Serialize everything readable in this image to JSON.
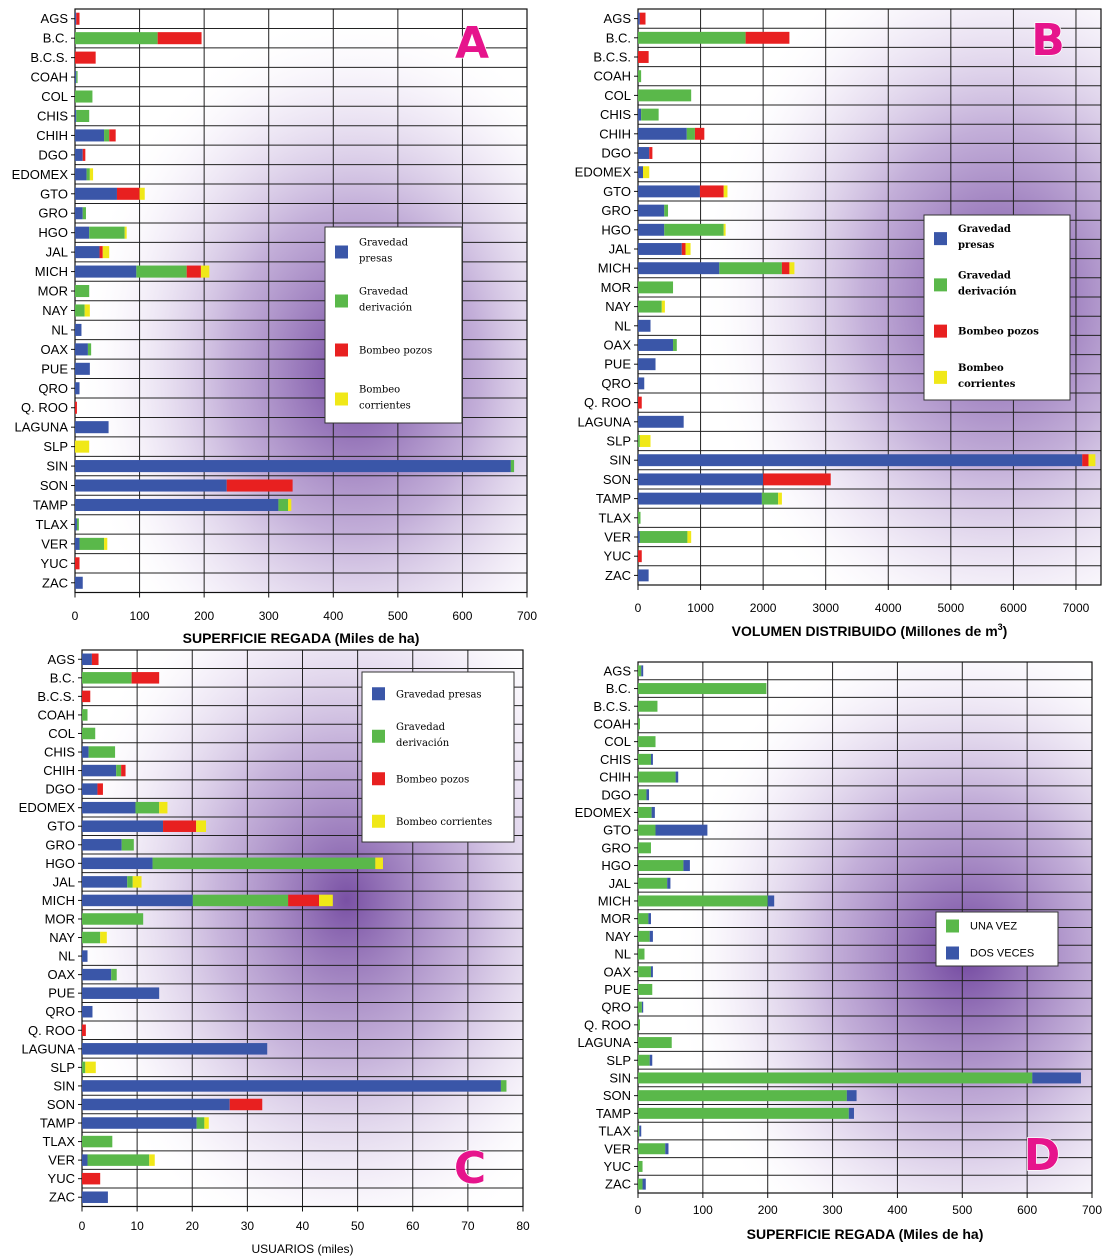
{
  "colors": {
    "gravedad_presas": "#3a56a8",
    "gravedad_derivacion": "#5ab84a",
    "bombeo_pozos": "#e82020",
    "bombeo_corrientes": "#f0e818",
    "una_vez": "#5ab84a",
    "dos_veces": "#3a56a8",
    "letter": "#e6148c",
    "background_purple": "#7a4aa8"
  },
  "chart_data": [
    {
      "id": "A",
      "type": "bar",
      "stacked": true,
      "orientation": "horizontal",
      "letter": "A",
      "xlabel": "SUPERFICIE REGADA (Miles de ha)",
      "xlim": [
        0,
        700
      ],
      "xticks": [
        0,
        100,
        200,
        300,
        400,
        500,
        600,
        700
      ],
      "grid": true,
      "legend_placement": "center-right",
      "categories": [
        "AGS",
        "B.C.",
        "B.C.S.",
        "COAH",
        "COL",
        "CHIS",
        "CHIH",
        "DGO",
        "EDOMEX",
        "GTO",
        "GRO",
        "HGO",
        "JAL",
        "MICH",
        "MOR",
        "NAY",
        "NL",
        "OAX",
        "PUE",
        "QRO",
        "Q. ROO",
        "LAGUNA",
        "SLP",
        "SIN",
        "SON",
        "TAMP",
        "TLAX",
        "VER",
        "YUC",
        "ZAC"
      ],
      "series": [
        {
          "name": "Gravedad presas",
          "color_key": "gravedad_presas",
          "values": [
            2,
            0,
            0,
            2,
            0,
            2,
            45,
            12,
            18,
            65,
            12,
            22,
            38,
            95,
            0,
            0,
            10,
            20,
            23,
            7,
            0,
            52,
            0,
            675,
            235,
            315,
            3,
            7,
            0,
            12
          ]
        },
        {
          "name": "Gravedad derivación",
          "color_key": "gravedad_derivacion",
          "values": [
            0,
            128,
            0,
            2,
            27,
            20,
            8,
            0,
            5,
            0,
            5,
            55,
            0,
            78,
            22,
            15,
            0,
            5,
            0,
            0,
            0,
            0,
            0,
            5,
            0,
            15,
            3,
            38,
            0,
            0
          ]
        },
        {
          "name": "Bombeo pozos",
          "color_key": "bombeo_pozos",
          "values": [
            5,
            68,
            32,
            0,
            0,
            0,
            10,
            4,
            0,
            35,
            0,
            0,
            5,
            22,
            0,
            0,
            0,
            0,
            0,
            0,
            3,
            0,
            0,
            0,
            102,
            0,
            0,
            0,
            7,
            0
          ]
        },
        {
          "name": "Bombeo corrientes",
          "color_key": "bombeo_corrientes",
          "values": [
            0,
            0,
            0,
            0,
            0,
            0,
            0,
            0,
            5,
            8,
            0,
            3,
            10,
            13,
            0,
            8,
            0,
            0,
            0,
            0,
            0,
            0,
            22,
            0,
            0,
            5,
            0,
            5,
            0,
            0
          ]
        }
      ]
    },
    {
      "id": "B",
      "type": "bar",
      "stacked": true,
      "orientation": "horizontal",
      "letter": "B",
      "xlabel": "VOLUMEN DISTRIBUIDO (Millones de m",
      "xlabel_sup": "3",
      "xlabel_end": ")",
      "xlim": [
        0,
        7400
      ],
      "xticks": [
        0,
        1000,
        2000,
        3000,
        4000,
        5000,
        6000,
        7000
      ],
      "grid": true,
      "legend_placement": "center-right",
      "categories": [
        "AGS",
        "B.C.",
        "B.C.S.",
        "COAH",
        "COL",
        "CHIS",
        "CHIH",
        "DGO",
        "EDOMEX",
        "GTO",
        "GRO",
        "HGO",
        "JAL",
        "MICH",
        "MOR",
        "NAY",
        "NL",
        "OAX",
        "PUE",
        "QRO",
        "Q. ROO",
        "LAGUNA",
        "SLP",
        "SIN",
        "SON",
        "TAMP",
        "TLAX",
        "VER",
        "YUC",
        "ZAC"
      ],
      "series": [
        {
          "name": "Gravedad presas",
          "color_key": "gravedad_presas",
          "values": [
            30,
            0,
            0,
            0,
            0,
            50,
            780,
            180,
            80,
            990,
            420,
            420,
            700,
            1300,
            0,
            0,
            200,
            560,
            280,
            100,
            0,
            730,
            0,
            7100,
            2000,
            1980,
            0,
            30,
            0,
            170
          ]
        },
        {
          "name": "Gravedad derivación",
          "color_key": "gravedad_derivacion",
          "values": [
            0,
            1720,
            0,
            50,
            850,
            280,
            130,
            0,
            0,
            0,
            60,
            950,
            0,
            1000,
            560,
            380,
            0,
            60,
            0,
            0,
            0,
            0,
            30,
            0,
            0,
            260,
            40,
            760,
            0,
            0
          ]
        },
        {
          "name": "Bombeo pozos",
          "color_key": "bombeo_pozos",
          "values": [
            90,
            700,
            170,
            0,
            0,
            0,
            150,
            50,
            0,
            380,
            0,
            0,
            60,
            120,
            0,
            0,
            0,
            0,
            0,
            0,
            60,
            0,
            0,
            100,
            1080,
            0,
            0,
            0,
            60,
            0
          ]
        },
        {
          "name": "Bombeo corrientes",
          "color_key": "bombeo_corrientes",
          "values": [
            0,
            0,
            0,
            0,
            0,
            0,
            0,
            0,
            100,
            60,
            0,
            30,
            80,
            80,
            0,
            50,
            0,
            0,
            0,
            0,
            0,
            0,
            170,
            110,
            0,
            60,
            0,
            60,
            0,
            0
          ]
        }
      ]
    },
    {
      "id": "C",
      "type": "bar",
      "stacked": true,
      "orientation": "horizontal",
      "letter": "C",
      "xlabel": "USUARIOS (miles)",
      "xlim": [
        0,
        80
      ],
      "xticks": [
        0,
        10,
        20,
        30,
        40,
        50,
        60,
        70,
        80
      ],
      "grid": true,
      "legend_placement": "top-right",
      "categories": [
        "AGS",
        "B.C.",
        "B.C.S.",
        "COAH",
        "COL",
        "CHIS",
        "CHIH",
        "DGO",
        "EDOMEX",
        "GTO",
        "GRO",
        "HGO",
        "JAL",
        "MICH",
        "MOR",
        "NAY",
        "NL",
        "OAX",
        "PUE",
        "QRO",
        "Q. ROO",
        "LAGUNA",
        "SLP",
        "SIN",
        "SON",
        "TAMP",
        "TLAX",
        "VER",
        "YUC",
        "ZAC"
      ],
      "series": [
        {
          "name": "Gravedad presas",
          "color_key": "gravedad_presas",
          "values": [
            1.8,
            0,
            0,
            0,
            0,
            1.2,
            6.2,
            2.8,
            9.7,
            14.7,
            7.2,
            12.8,
            8.2,
            20.1,
            0,
            0,
            1,
            5.3,
            14,
            1.9,
            0,
            33.6,
            0,
            76,
            26.8,
            20.8,
            0,
            1,
            0,
            4.7
          ]
        },
        {
          "name": "Gravedad derivación",
          "color_key": "gravedad_derivacion",
          "values": [
            0,
            9,
            0,
            1,
            2.4,
            4.8,
            0.9,
            0,
            4.3,
            0,
            2.2,
            40.4,
            1,
            17.3,
            11.1,
            3.3,
            0,
            1,
            0,
            0,
            0,
            0,
            0.6,
            1,
            0,
            1.4,
            5.5,
            11.2,
            0,
            0
          ]
        },
        {
          "name": "Bombeo pozos",
          "color_key": "bombeo_pozos",
          "values": [
            1.2,
            5,
            1.5,
            0,
            0,
            0,
            0.8,
            1,
            0,
            6,
            0,
            0,
            0,
            5.6,
            0,
            0,
            0,
            0,
            0,
            0,
            0.7,
            0,
            0,
            0,
            5.9,
            0,
            0,
            0,
            3.3,
            0
          ]
        },
        {
          "name": "Bombeo corrientes",
          "color_key": "bombeo_corrientes",
          "values": [
            0,
            0,
            0,
            0,
            0,
            0,
            0,
            0,
            1.5,
            1.8,
            0,
            1.4,
            1.6,
            2.5,
            0,
            1.2,
            0,
            0,
            0,
            0,
            0,
            0,
            1.9,
            0,
            0,
            0.8,
            0,
            1,
            0,
            0
          ]
        }
      ]
    },
    {
      "id": "D",
      "type": "bar",
      "stacked": true,
      "orientation": "horizontal",
      "letter": "D",
      "xlabel": "SUPERFICIE REGADA (Miles de ha)",
      "xlim": [
        0,
        700
      ],
      "xticks": [
        0,
        100,
        200,
        300,
        400,
        500,
        600,
        700
      ],
      "grid": true,
      "legend_placement": "center-right",
      "categories": [
        "AGS",
        "B.C.",
        "B.C.S.",
        "COAH",
        "COL",
        "CHIS",
        "CHIH",
        "DGO",
        "EDOMEX",
        "GTO",
        "GRO",
        "HGO",
        "JAL",
        "MICH",
        "MOR",
        "NAY",
        "NL",
        "OAX",
        "PUE",
        "QRO",
        "Q. ROO",
        "LAGUNA",
        "SLP",
        "SIN",
        "SON",
        "TAMP",
        "TLAX",
        "VER",
        "YUC",
        "ZAC"
      ],
      "series": [
        {
          "name": "UNA VEZ",
          "color_key": "una_vez",
          "values": [
            5,
            198,
            30,
            3,
            27,
            20,
            58,
            13,
            21,
            27,
            20,
            70,
            45,
            200,
            16,
            18,
            10,
            20,
            22,
            6,
            3,
            52,
            18,
            608,
            322,
            325,
            2,
            42,
            7,
            7
          ]
        },
        {
          "name": "DOS VECES",
          "color_key": "dos_veces",
          "values": [
            3,
            0,
            0,
            0,
            0,
            3,
            4,
            4,
            5,
            80,
            0,
            10,
            5,
            10,
            4,
            5,
            0,
            3,
            0,
            2,
            0,
            0,
            4,
            75,
            15,
            8,
            3,
            5,
            0,
            5
          ]
        }
      ]
    }
  ],
  "legends": {
    "A": [
      "Gravedad\npresas",
      "Gravedad\nderivación",
      "Bombeo pozos",
      "Bombeo\ncorrientes"
    ],
    "B": [
      "Gravedad\npresas",
      "Gravedad\nderivación",
      "Bombeo pozos",
      "Bombeo\ncorrientes"
    ],
    "C": [
      "Gravedad presas",
      "Gravedad\nderivación",
      "Bombeo pozos",
      "Bombeo corrientes"
    ],
    "D": [
      "UNA VEZ",
      "DOS VECES"
    ]
  }
}
